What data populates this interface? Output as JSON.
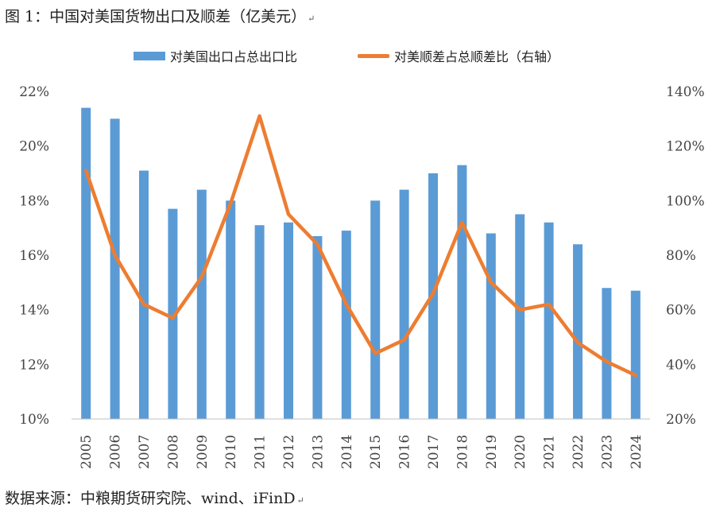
{
  "figure_title": "图 1：中国对美国货物出口及顺差（亿美元）",
  "source": "数据来源：中粮期货研究院、wind、iFinD",
  "paragraph_mark": "↵",
  "chart_data": {
    "type": "bar+line",
    "categories": [
      "2005",
      "2006",
      "2007",
      "2008",
      "2009",
      "2010",
      "2011",
      "2012",
      "2013",
      "2014",
      "2015",
      "2016",
      "2017",
      "2018",
      "2019",
      "2020",
      "2021",
      "2022",
      "2023",
      "2024"
    ],
    "series": [
      {
        "name": "对美国出口占总出口比",
        "type": "bar",
        "axis": "left",
        "color": "#5b9bd5",
        "values": [
          21.4,
          21.0,
          19.1,
          17.7,
          18.4,
          18.0,
          17.1,
          17.2,
          16.7,
          16.9,
          18.0,
          18.4,
          19.0,
          19.3,
          16.8,
          17.5,
          17.2,
          16.4,
          14.8,
          14.7
        ]
      },
      {
        "name": "对美顺差占总顺差比（右轴）",
        "type": "line",
        "axis": "right",
        "color": "#ed7d31",
        "values": [
          111,
          80,
          62,
          57,
          72,
          99,
          131,
          95,
          84,
          62,
          44,
          49,
          66,
          92,
          70,
          60,
          62,
          48,
          41,
          36
        ]
      }
    ],
    "left_axis": {
      "ylim": [
        10,
        22
      ],
      "ticks": [
        10,
        12,
        14,
        16,
        18,
        20,
        22
      ],
      "tick_labels": [
        "10%",
        "12%",
        "14%",
        "16%",
        "18%",
        "20%",
        "22%"
      ]
    },
    "right_axis": {
      "ylim": [
        20,
        140
      ],
      "ticks": [
        20,
        40,
        60,
        80,
        100,
        120,
        140
      ],
      "tick_labels": [
        "20%",
        "40%",
        "60%",
        "80%",
        "100%",
        "120%",
        "140%"
      ]
    },
    "legend_position": "top-center",
    "grid": false
  }
}
